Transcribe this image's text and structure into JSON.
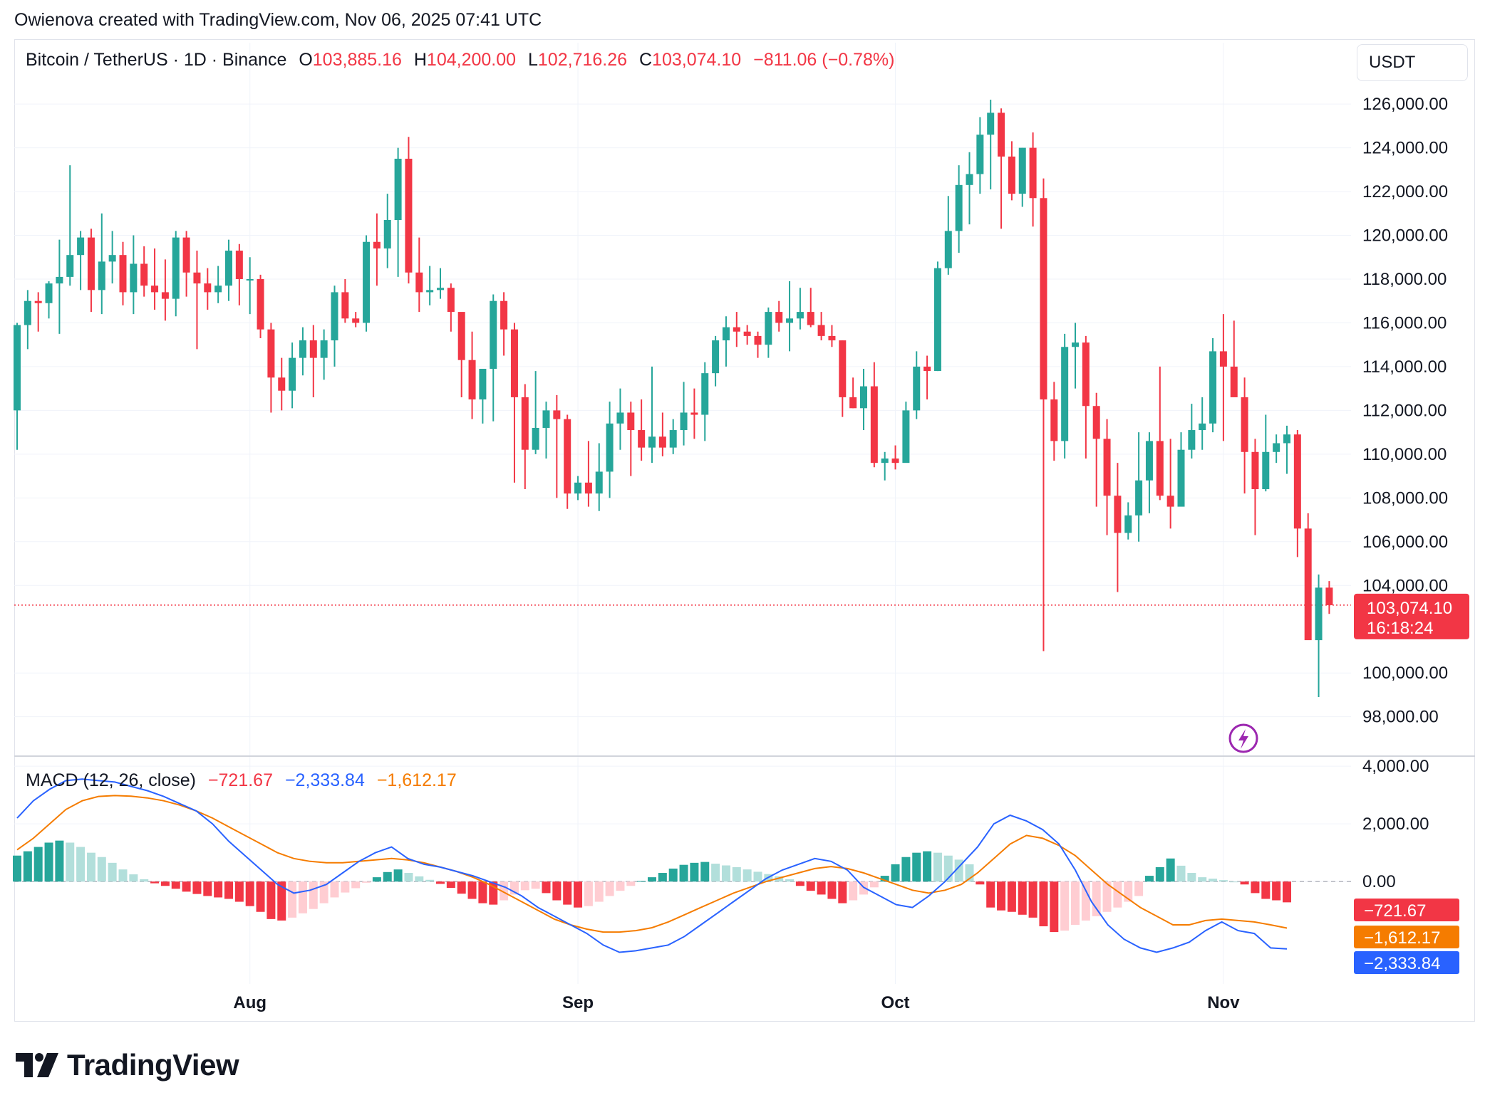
{
  "attribution": "Owienova created with TradingView.com, Nov 06, 2025 07:41 UTC",
  "brand": {
    "name": "TradingView"
  },
  "currency": "USDT",
  "header": {
    "symbol": "Bitcoin / TetherUS · 1D · Binance",
    "o_label": "O",
    "o_value": "103,885.16",
    "h_label": "H",
    "h_value": "104,200.00",
    "l_label": "L",
    "l_value": "102,716.26",
    "c_label": "C",
    "c_value": "103,074.10",
    "change": "−811.06 (−0.78%)"
  },
  "macd_legend": {
    "name": "MACD (12, 26, close)",
    "histogram": "−721.67",
    "macd": "−2,333.84",
    "signal": "−1,612.17"
  },
  "price_tag": {
    "price": "103,074.10",
    "countdown": "16:18:24"
  },
  "macd_tags": {
    "histogram": "−721.67",
    "signal": "−1,612.17",
    "macd": "−2,333.84"
  },
  "colors": {
    "up": "#26a69a",
    "down": "#f23645",
    "macd": "#2962ff",
    "signal": "#f57c00",
    "hist_up_strong": "#26a69a",
    "hist_up_weak": "#b2dfdb",
    "hist_down_strong": "#f23645",
    "hist_down_weak": "#ffcdd2"
  },
  "chart_data": {
    "type": "candlestick",
    "title": "Bitcoin / TetherUS · 1D · Binance",
    "price_axis": {
      "range": [
        96200,
        127500
      ],
      "ticks": [
        "126,000.00",
        "124,000.00",
        "122,000.00",
        "120,000.00",
        "118,000.00",
        "116,000.00",
        "114,000.00",
        "112,000.00",
        "110,000.00",
        "108,000.00",
        "106,000.00",
        "104,000.00",
        "100,000.00",
        "98,000.00"
      ],
      "tick_values": [
        126000,
        124000,
        122000,
        120000,
        118000,
        116000,
        114000,
        112000,
        110000,
        108000,
        106000,
        104000,
        100000,
        98000
      ]
    },
    "x_axis": {
      "months": [
        {
          "label": "Aug",
          "index": 22
        },
        {
          "label": "Sep",
          "index": 53
        },
        {
          "label": "Oct",
          "index": 83
        },
        {
          "label": "Nov",
          "index": 114
        }
      ]
    },
    "candles_ohlc": [
      [
        112000,
        116000,
        110200,
        115900
      ],
      [
        115900,
        117500,
        114800,
        117000
      ],
      [
        117000,
        117400,
        115600,
        116900
      ],
      [
        116900,
        117900,
        116200,
        117800
      ],
      [
        117800,
        119800,
        115500,
        118100
      ],
      [
        118100,
        123200,
        117700,
        119100
      ],
      [
        119100,
        120200,
        117500,
        119900
      ],
      [
        119900,
        120300,
        116500,
        117500
      ],
      [
        117500,
        121000,
        116400,
        118800
      ],
      [
        118800,
        120200,
        117800,
        119100
      ],
      [
        119100,
        119700,
        116800,
        117400
      ],
      [
        117400,
        120000,
        116400,
        118700
      ],
      [
        118700,
        119500,
        117200,
        117700
      ],
      [
        117700,
        119400,
        116600,
        117400
      ],
      [
        117400,
        118900,
        116100,
        117100
      ],
      [
        117100,
        120200,
        116300,
        119900
      ],
      [
        119900,
        120200,
        117200,
        118300
      ],
      [
        118300,
        119300,
        114800,
        117800
      ],
      [
        117800,
        118500,
        116600,
        117400
      ],
      [
        117400,
        118600,
        116900,
        117700
      ],
      [
        117700,
        119800,
        117000,
        119300
      ],
      [
        119300,
        119600,
        116800,
        118000
      ],
      [
        118000,
        119000,
        116400,
        118000
      ],
      [
        118000,
        118200,
        115300,
        115700
      ],
      [
        115700,
        116000,
        111900,
        113500
      ],
      [
        113500,
        114400,
        112000,
        112900
      ],
      [
        112900,
        115100,
        112100,
        114400
      ],
      [
        114400,
        115800,
        113600,
        115200
      ],
      [
        115200,
        115900,
        112600,
        114400
      ],
      [
        114400,
        115700,
        113400,
        115200
      ],
      [
        115200,
        117700,
        114000,
        117400
      ],
      [
        117400,
        118000,
        116000,
        116200
      ],
      [
        116200,
        116500,
        115800,
        116000
      ],
      [
        116000,
        120000,
        115600,
        119700
      ],
      [
        119700,
        121000,
        117700,
        119400
      ],
      [
        119400,
        121900,
        118500,
        120700
      ],
      [
        120700,
        124000,
        118100,
        123500
      ],
      [
        123500,
        124500,
        117800,
        118300
      ],
      [
        118300,
        119900,
        116500,
        117400
      ],
      [
        117400,
        118600,
        116800,
        117500
      ],
      [
        117500,
        118500,
        117100,
        117600
      ],
      [
        117600,
        117800,
        115600,
        116500
      ],
      [
        116500,
        116400,
        112600,
        114300
      ],
      [
        114300,
        115600,
        111600,
        112500
      ],
      [
        112500,
        113800,
        111400,
        113900
      ],
      [
        113900,
        117300,
        111500,
        117000
      ],
      [
        117000,
        117400,
        114500,
        115700
      ],
      [
        115700,
        116000,
        108700,
        112600
      ],
      [
        112600,
        113200,
        108400,
        110200
      ],
      [
        110200,
        113800,
        110000,
        111200
      ],
      [
        111200,
        112400,
        109800,
        112000
      ],
      [
        112000,
        112700,
        108000,
        111600
      ],
      [
        111600,
        111800,
        107500,
        108200
      ],
      [
        108200,
        109000,
        107900,
        108700
      ],
      [
        108700,
        110600,
        107600,
        108200
      ],
      [
        108200,
        110500,
        107400,
        109200
      ],
      [
        109200,
        112400,
        108000,
        111400
      ],
      [
        111400,
        113000,
        110200,
        111900
      ],
      [
        111900,
        112400,
        109000,
        111100
      ],
      [
        111100,
        112500,
        109700,
        110300
      ],
      [
        110300,
        114000,
        109600,
        110800
      ],
      [
        110800,
        111900,
        109900,
        110300
      ],
      [
        110300,
        111600,
        110000,
        111100
      ],
      [
        111100,
        113300,
        110400,
        111900
      ],
      [
        111900,
        113000,
        110700,
        111800
      ],
      [
        111800,
        114200,
        110600,
        113700
      ],
      [
        113700,
        115400,
        113100,
        115200
      ],
      [
        115200,
        116300,
        114000,
        115800
      ],
      [
        115800,
        116500,
        114900,
        115600
      ],
      [
        115600,
        115900,
        115000,
        115400
      ],
      [
        115400,
        115600,
        114400,
        115000
      ],
      [
        115000,
        116700,
        114400,
        116500
      ],
      [
        116500,
        117000,
        115600,
        116000
      ],
      [
        116000,
        117900,
        114700,
        116200
      ],
      [
        116200,
        117600,
        115700,
        116500
      ],
      [
        116500,
        117600,
        115800,
        115900
      ],
      [
        115900,
        116500,
        115200,
        115400
      ],
      [
        115400,
        115900,
        114900,
        115200
      ],
      [
        115200,
        115200,
        111700,
        112600
      ],
      [
        112600,
        113500,
        112100,
        112100
      ],
      [
        112100,
        113900,
        111100,
        113100
      ],
      [
        113100,
        114200,
        109400,
        109600
      ],
      [
        109600,
        110100,
        108800,
        109800
      ],
      [
        109800,
        110400,
        109300,
        109600
      ],
      [
        109600,
        112400,
        109700,
        112000
      ],
      [
        112000,
        114700,
        111600,
        114000
      ],
      [
        114000,
        114500,
        112500,
        113800
      ],
      [
        113800,
        118800,
        113800,
        118500
      ],
      [
        118500,
        121800,
        118200,
        120200
      ],
      [
        120200,
        123200,
        119200,
        122300
      ],
      [
        122300,
        123800,
        120500,
        122800
      ],
      [
        122800,
        125400,
        121900,
        124600
      ],
      [
        124600,
        126200,
        122100,
        125600
      ],
      [
        125600,
        125800,
        120300,
        123600
      ],
      [
        123600,
        124300,
        121600,
        121900
      ],
      [
        121900,
        124000,
        121300,
        124000
      ],
      [
        124000,
        124700,
        120400,
        121700
      ],
      [
        121700,
        122600,
        101000,
        112500
      ],
      [
        112500,
        113300,
        109700,
        110600
      ],
      [
        110600,
        115500,
        109800,
        114900
      ],
      [
        114900,
        116000,
        113000,
        115100
      ],
      [
        115100,
        115400,
        109800,
        112200
      ],
      [
        112200,
        112800,
        107600,
        110700
      ],
      [
        110700,
        111600,
        106300,
        108100
      ],
      [
        108100,
        109600,
        103700,
        106400
      ],
      [
        106400,
        107800,
        106100,
        107200
      ],
      [
        107200,
        111000,
        106000,
        108800
      ],
      [
        108800,
        111000,
        107300,
        110600
      ],
      [
        110600,
        114000,
        107900,
        108100
      ],
      [
        108100,
        110700,
        106600,
        107600
      ],
      [
        107600,
        111000,
        107700,
        110200
      ],
      [
        110200,
        112300,
        109800,
        111100
      ],
      [
        111100,
        112600,
        110200,
        111400
      ],
      [
        111400,
        115300,
        111000,
        114700
      ],
      [
        114700,
        116400,
        110600,
        114000
      ],
      [
        114000,
        116100,
        112900,
        112600
      ],
      [
        112600,
        113500,
        108200,
        110100
      ],
      [
        110100,
        110700,
        106300,
        108400
      ],
      [
        108400,
        111800,
        108300,
        110100
      ],
      [
        110100,
        110900,
        109600,
        110500
      ],
      [
        110500,
        111300,
        109100,
        110900
      ],
      [
        110900,
        111100,
        105300,
        106600
      ],
      [
        106600,
        107300,
        102000,
        101500
      ],
      [
        101500,
        104500,
        98900,
        103900
      ],
      [
        103900,
        104200,
        102700,
        103100
      ]
    ],
    "macd": {
      "name": "MACD (12, 26, close)",
      "axis_ticks": [
        "4,000.00",
        "2,000.00",
        "0.00"
      ],
      "axis_tick_values": [
        4000,
        2000,
        0
      ],
      "range": [
        -3500,
        4200
      ],
      "histogram": [
        900,
        1050,
        1200,
        1350,
        1420,
        1350,
        1200,
        1000,
        850,
        650,
        420,
        250,
        80,
        -60,
        -150,
        -250,
        -350,
        -430,
        -500,
        -550,
        -600,
        -700,
        -850,
        -1050,
        -1300,
        -1350,
        -1250,
        -1100,
        -950,
        -750,
        -550,
        -380,
        -230,
        -40,
        150,
        330,
        420,
        300,
        180,
        60,
        -80,
        -220,
        -420,
        -600,
        -750,
        -800,
        -650,
        -450,
        -300,
        -250,
        -400,
        -650,
        -800,
        -900,
        -850,
        -700,
        -500,
        -320,
        -150,
        20,
        150,
        300,
        450,
        580,
        650,
        680,
        620,
        560,
        500,
        420,
        340,
        260,
        180,
        80,
        -150,
        -320,
        -450,
        -600,
        -750,
        -650,
        -450,
        -200,
        200,
        600,
        850,
        1000,
        1050,
        1000,
        900,
        760,
        600,
        -100,
        -900,
        -1000,
        -1050,
        -1150,
        -1250,
        -1550,
        -1750,
        -1700,
        -1500,
        -1350,
        -1200,
        -1050,
        -900,
        -700,
        -500,
        200,
        500,
        800,
        550,
        300,
        150,
        100,
        50,
        0,
        -100,
        -400,
        -600,
        -650,
        -720
      ],
      "macd_line": [
        2200,
        2800,
        3200,
        3500,
        3550,
        3500,
        3450,
        3300,
        3150,
        2950,
        2700,
        2450,
        2000,
        1400,
        900,
        400,
        -100,
        -400,
        -300,
        -100,
        300,
        700,
        1000,
        1200,
        800,
        600,
        500,
        350,
        200,
        0,
        -200,
        -500,
        -900,
        -1200,
        -1500,
        -1800,
        -2200,
        -2450,
        -2400,
        -2300,
        -2200,
        -1900,
        -1500,
        -1100,
        -700,
        -300,
        100,
        400,
        600,
        800,
        700,
        400,
        -200,
        -500,
        -800,
        -900,
        -500,
        0,
        600,
        1200,
        2000,
        2300,
        2100,
        1800,
        1300,
        400,
        -700,
        -1500,
        -2000,
        -2300,
        -2450,
        -2300,
        -2100,
        -1700,
        -1400,
        -1700,
        -1800,
        -2300,
        -2333
      ],
      "signal_line": [
        1100,
        1500,
        2000,
        2500,
        2800,
        2950,
        2980,
        2960,
        2900,
        2800,
        2650,
        2450,
        2200,
        1900,
        1600,
        1300,
        1000,
        800,
        700,
        650,
        650,
        700,
        750,
        800,
        750,
        650,
        500,
        350,
        150,
        -100,
        -400,
        -700,
        -1000,
        -1300,
        -1500,
        -1650,
        -1750,
        -1750,
        -1700,
        -1600,
        -1400,
        -1150,
        -900,
        -650,
        -400,
        -200,
        0,
        150,
        300,
        450,
        520,
        450,
        300,
        100,
        -100,
        -300,
        -400,
        -300,
        -100,
        300,
        800,
        1300,
        1600,
        1500,
        1250,
        900,
        400,
        -100,
        -500,
        -900,
        -1200,
        -1500,
        -1500,
        -1350,
        -1300,
        -1350,
        -1400,
        -1500,
        -1612
      ]
    }
  }
}
